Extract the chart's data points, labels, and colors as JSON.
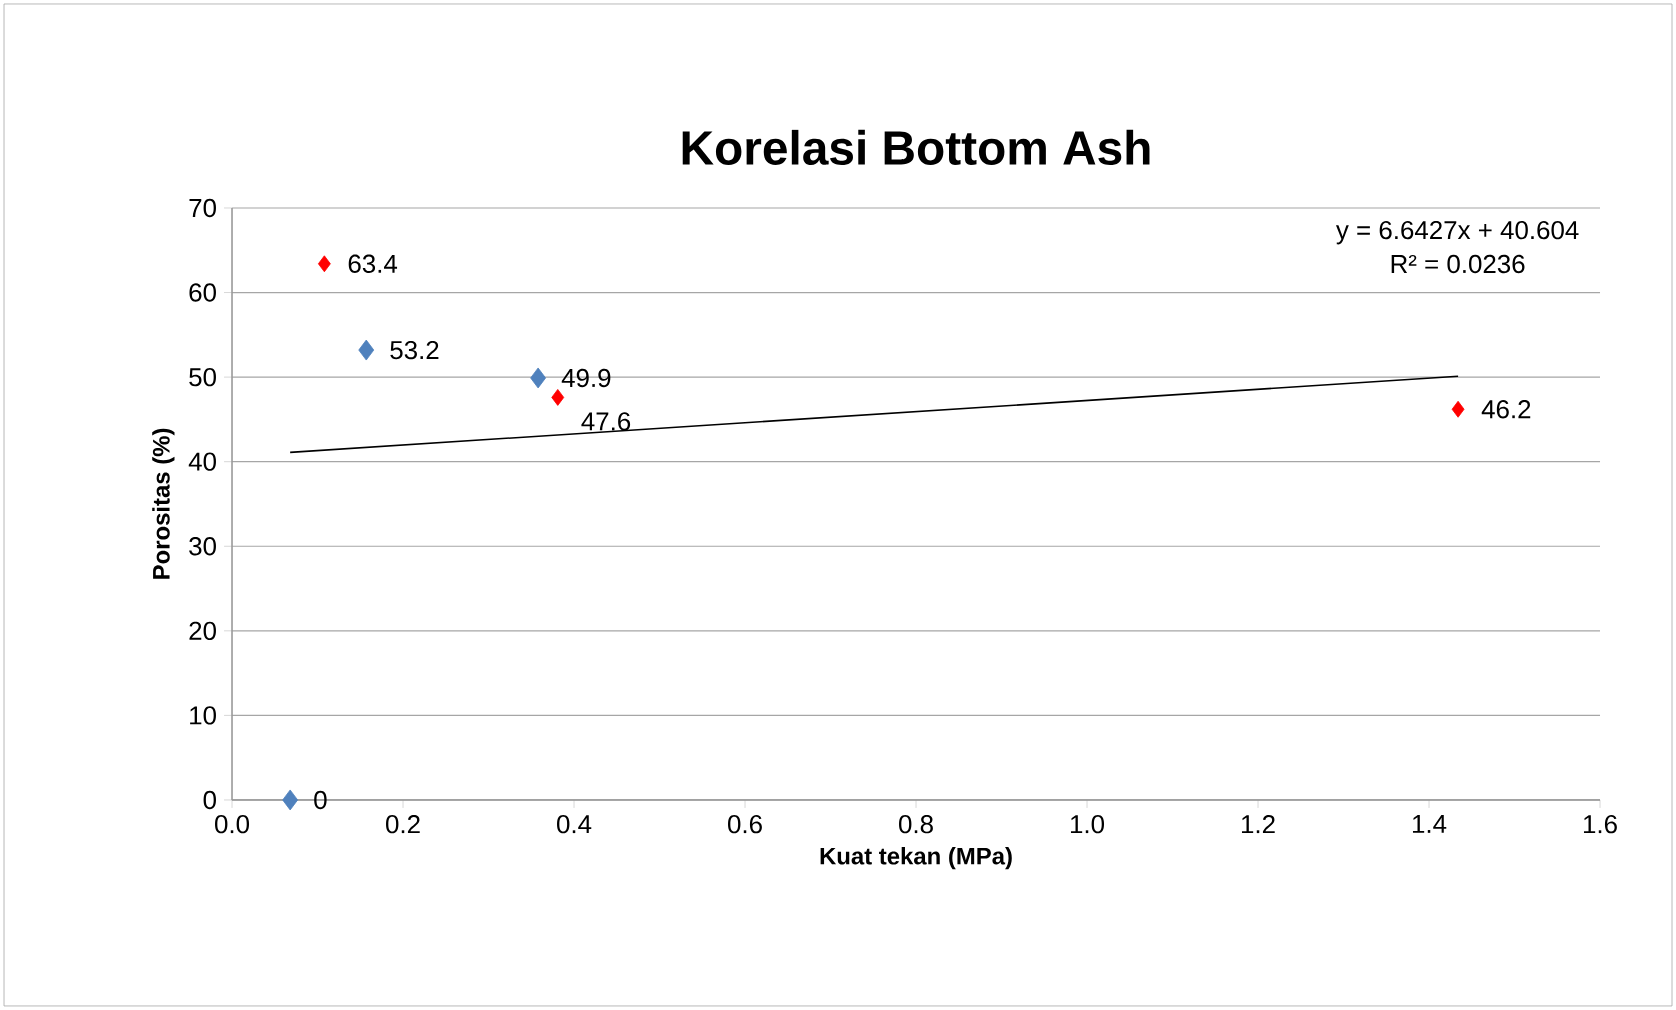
{
  "chart_data": {
    "type": "scatter",
    "title": "Korelasi Bottom Ash",
    "xlabel": "Kuat tekan (MPa)",
    "ylabel": "Porositas (%)",
    "series": [
      {
        "color": "#4f81bd",
        "x": [
          0.068,
          0.157,
          0.358
        ],
        "values": [
          0,
          53.2,
          49.9
        ],
        "value_labels": [
          "0",
          "53.2",
          "49.9"
        ]
      },
      {
        "color": "#ff0000",
        "x": [
          0.108,
          0.381,
          1.434
        ],
        "values": [
          63.4,
          47.6,
          46.2
        ],
        "value_labels": [
          "63.4",
          "47.6",
          "46.2"
        ]
      },
      {
        "type": "line",
        "marker": "none",
        "color": "#000000",
        "x": [
          0.068,
          1.434
        ],
        "values": [
          41.1,
          50.1
        ]
      }
    ],
    "annotations": [
      "y = 6.6427x + 40.604",
      "R² = 0.0236"
    ],
    "xlim": [
      0,
      1.6
    ],
    "xticks": [
      {
        "value": 0,
        "label": "0.0"
      },
      {
        "value": 0.2,
        "label": "0.2"
      },
      {
        "value": 0.4,
        "label": "0.4"
      },
      {
        "value": 0.6,
        "label": "0.6"
      },
      {
        "value": 0.8,
        "label": "0.8"
      },
      {
        "value": 1.0,
        "label": "1.0"
      },
      {
        "value": 1.2,
        "label": "1.2"
      },
      {
        "value": 1.4,
        "label": "1.4"
      },
      {
        "value": 1.6,
        "label": "1.6"
      }
    ],
    "ylim": [
      0,
      70
    ],
    "yticks": [
      0,
      10,
      20,
      30,
      40,
      50,
      60,
      70
    ],
    "grid": "y",
    "marker": "diamond"
  }
}
